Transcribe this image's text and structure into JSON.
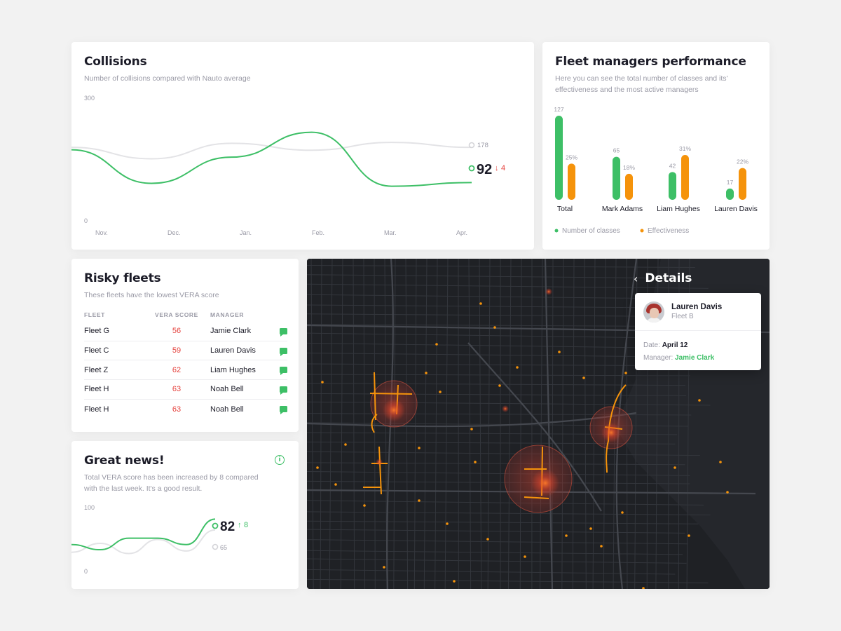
{
  "collisions": {
    "title": "Collisions",
    "subtitle": "Number of collisions compared with Nauto average",
    "current_value": "92",
    "delta": "4",
    "average_value": "178",
    "chart_data": {
      "type": "line",
      "x": [
        "Nov.",
        "Dec.",
        "Jan.",
        "Feb.",
        "Mar.",
        "Apr."
      ],
      "ylim": [
        0,
        300
      ],
      "ytick_labels": [
        "300",
        "0"
      ],
      "series": [
        {
          "values": [
            172,
            90,
            154,
            215,
            83,
            92
          ],
          "color": "#3dbf66"
        },
        {
          "values": [
            178,
            150,
            188,
            171,
            190,
            178
          ],
          "color": "#e3e3e6"
        }
      ]
    }
  },
  "fleet_performance": {
    "title": "Fleet managers performance",
    "subtitle": "Here you can see the total number of classes and its' effectiveness and the most active managers",
    "legend": [
      {
        "label": "Number of classes",
        "color": "#3dbf66"
      },
      {
        "label": "Effectiveness",
        "color": "#f5930b"
      }
    ],
    "chart_data": {
      "type": "bar",
      "categories": [
        "Total",
        "Mark Adams",
        "Liam Hughes",
        "Lauren Davis"
      ],
      "series": [
        {
          "name": "Number of classes",
          "values": [
            127,
            65,
            42,
            17
          ],
          "labels": [
            "127",
            "65",
            "42",
            "17"
          ],
          "color": "#3dbf66"
        },
        {
          "name": "Effectiveness",
          "values": [
            25,
            18,
            31,
            22
          ],
          "labels": [
            "25%",
            "18%",
            "31%",
            "22%"
          ],
          "color": "#f5930b"
        }
      ]
    }
  },
  "risky_fleets": {
    "title": "Risky fleets",
    "subtitle": "These fleets have the lowest VERA score",
    "columns": [
      "FLEET",
      "VERA SCORE",
      "MANAGER"
    ],
    "rows": [
      {
        "fleet": "Fleet G",
        "score": "56",
        "manager": "Jamie Clark"
      },
      {
        "fleet": "Fleet C",
        "score": "59",
        "manager": "Lauren Davis"
      },
      {
        "fleet": "Fleet Z",
        "score": "62",
        "manager": "Liam Hughes"
      },
      {
        "fleet": "Fleet H",
        "score": "63",
        "manager": "Noah Bell"
      },
      {
        "fleet": "Fleet H",
        "score": "63",
        "manager": "Noah Bell"
      }
    ],
    "score_color": "#e5413c",
    "chat_icon": "chat-icon"
  },
  "great_news": {
    "title": "Great news!",
    "subtitle": "Total VERA score has been increased by 8 compared with the last week. It's a good result.",
    "current_value": "82",
    "delta": "8",
    "average_value": "65",
    "info_icon": "info-icon",
    "chart_data": {
      "type": "line",
      "ylim": [
        0,
        100
      ],
      "ytick_labels": [
        "100",
        "0"
      ],
      "series": [
        {
          "values": [
            42,
            34,
            52,
            52,
            42,
            82
          ],
          "color": "#3dbf66"
        },
        {
          "values": [
            30,
            44,
            28,
            50,
            32,
            65
          ],
          "color": "#e3e3e6"
        }
      ]
    }
  },
  "map": {
    "details_title": "Details",
    "back_icon": "chevron-left-icon",
    "details": {
      "name": "Lauren Davis",
      "fleet": "Fleet B",
      "date_label": "Date:",
      "date_value": "April 12",
      "manager_label": "Manager:",
      "manager_value": "Jamie Clark"
    }
  }
}
